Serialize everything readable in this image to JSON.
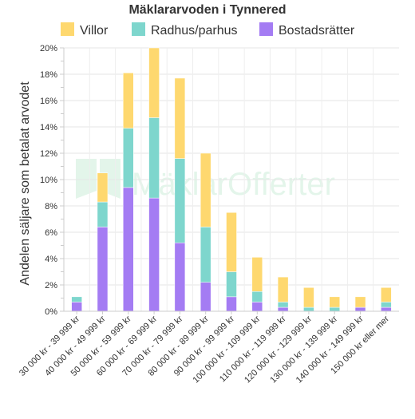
{
  "chart_data": {
    "type": "bar",
    "stacked": true,
    "title": "Mäklararvoden i Tynnered",
    "ylabel": "Andelen säljare som betalat arvodet",
    "xlabel": "",
    "ylim": [
      0,
      20
    ],
    "y_tick_values": [
      0,
      2,
      4,
      6,
      8,
      10,
      12,
      14,
      16,
      18,
      20
    ],
    "y_tick_labels": [
      "0%",
      "2%",
      "4%",
      "6%",
      "8%",
      "10%",
      "12%",
      "14%",
      "16%",
      "18%",
      "20%"
    ],
    "grid": true,
    "legend_position": "top",
    "categories": [
      "30 000 kr - 39 999 kr",
      "40 000 kr - 49 999 kr",
      "50 000 kr - 59 999 kr",
      "60 000 kr - 69 999 kr",
      "70 000 kr - 79 999 kr",
      "80 000 kr - 89 999 kr",
      "90 000 kr - 99 999 kr",
      "100 000 kr - 109 999 kr",
      "110 000 kr - 119 999 kr",
      "120 000 kr - 129 999 kr",
      "130 000 kr - 139 999 kr",
      "140 000 kr - 149 999 kr",
      "150 000 kr eller mer"
    ],
    "series": [
      {
        "name": "Bostadsrätter",
        "color": "#a47cf3",
        "values": [
          0.7,
          6.4,
          9.4,
          8.6,
          5.2,
          2.2,
          1.1,
          0.7,
          0.3,
          0.0,
          0.0,
          0.3,
          0.3
        ]
      },
      {
        "name": "Radhus/parhus",
        "color": "#7ed6cd",
        "values": [
          0.4,
          1.9,
          4.5,
          6.1,
          6.4,
          4.2,
          1.9,
          0.8,
          0.4,
          0.3,
          0.3,
          0.0,
          0.4
        ]
      },
      {
        "name": "Villor",
        "color": "#fed86f",
        "values": [
          0.0,
          2.2,
          4.2,
          5.3,
          6.1,
          5.6,
          4.5,
          2.6,
          1.9,
          1.5,
          0.8,
          0.8,
          1.1
        ]
      }
    ],
    "legend_order": [
      "Villor",
      "Radhus/parhus",
      "Bostadsrätter"
    ]
  },
  "watermark": "MäklarOfferter"
}
